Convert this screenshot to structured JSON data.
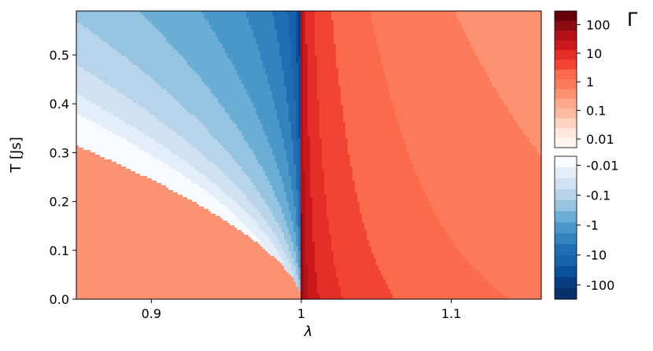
{
  "chart_data": {
    "type": "heatmap",
    "subtype": "filled-contour",
    "xlabel": "λ",
    "ylabel": "T [Js]",
    "xlim": [
      0.85,
      1.16
    ],
    "ylim": [
      0,
      0.59
    ],
    "x_ticks": [
      0.9,
      1.0,
      1.1
    ],
    "x_tick_labels": [
      "0.9",
      "1",
      "1.1"
    ],
    "y_ticks": [
      0.0,
      0.1,
      0.2,
      0.3,
      0.4,
      0.5
    ],
    "y_tick_labels": [
      "0.0",
      "0.1",
      "0.2",
      "0.3",
      "0.4",
      "0.5"
    ],
    "colorbar": {
      "title": "Γ",
      "scale": "symlog",
      "positive": {
        "colormap": "Reds",
        "range": [
          0.005,
          300
        ],
        "ticks": [
          0.01,
          0.1,
          1,
          10,
          100
        ],
        "tick_labels": [
          "0.01",
          "0.1",
          "1",
          "10",
          "100"
        ]
      },
      "negative": {
        "colormap": "Blues",
        "range": [
          -0.005,
          -300
        ],
        "ticks": [
          -0.01,
          -0.1,
          -1,
          -10,
          -100
        ],
        "tick_labels": [
          "-0.01",
          "-0.1",
          "-1",
          "-10",
          "-100"
        ]
      }
    },
    "critical_point": {
      "x": 1.0,
      "y": 0.0
    },
    "grid": false,
    "colors": {
      "red_dark": "#67000d",
      "red_mid": "#ef3b2c",
      "red_light": "#fcbba1",
      "blue_dark": "#08306b",
      "blue_mid": "#4292c6",
      "blue_light": "#deebf7"
    }
  }
}
